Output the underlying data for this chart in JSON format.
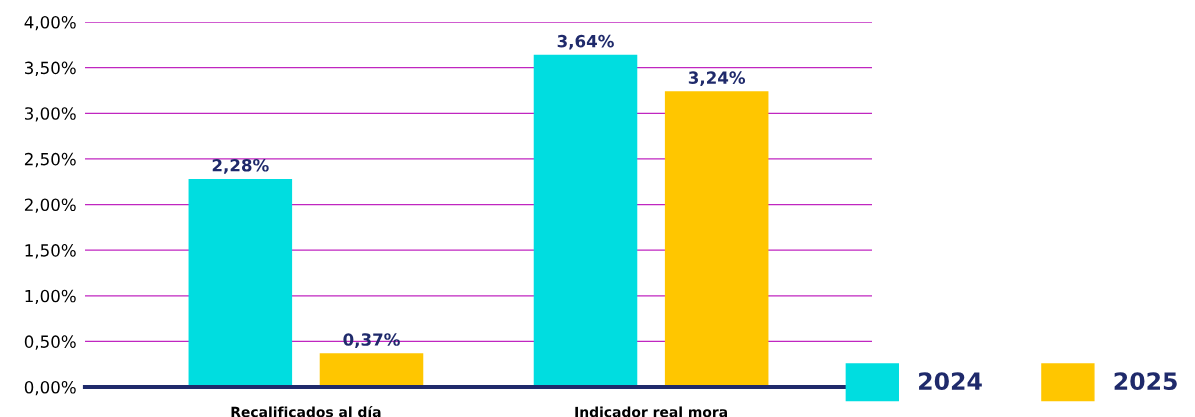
{
  "chart_data": {
    "type": "bar",
    "categories": [
      "Recalificados al día",
      "Indicador real mora"
    ],
    "series": [
      {
        "name": "2024",
        "color": "#00dde0",
        "values": [
          2.28,
          3.64
        ],
        "value_labels": [
          "2,28%",
          "3,64%"
        ]
      },
      {
        "name": "2025",
        "color": "#ffc600",
        "values": [
          0.37,
          3.24
        ],
        "value_labels": [
          "0,37%",
          "3,24%"
        ]
      }
    ],
    "ylim": [
      0,
      4
    ],
    "yticks": [
      {
        "value": 0,
        "label": "0,00%"
      },
      {
        "value": 0.5,
        "label": "0,50%"
      },
      {
        "value": 1,
        "label": "1,00%"
      },
      {
        "value": 1.5,
        "label": "1,50%"
      },
      {
        "value": 2,
        "label": "2,00%"
      },
      {
        "value": 2.5,
        "label": "2,50%"
      },
      {
        "value": 3,
        "label": "3,00%"
      },
      {
        "value": 3.5,
        "label": "3,50%"
      },
      {
        "value": 4,
        "label": "4,00%"
      }
    ],
    "grid": "y",
    "legend": "bottom right"
  }
}
